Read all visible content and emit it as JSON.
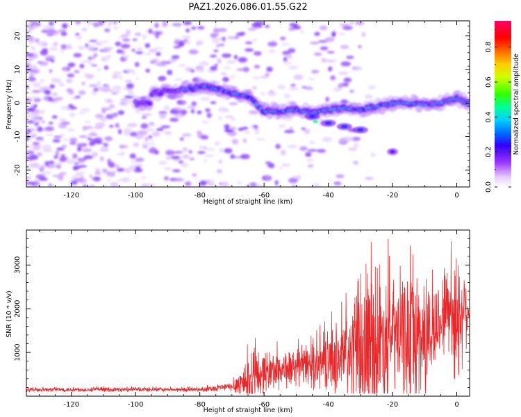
{
  "title": "PAZ1.2026.086.01.55.G22",
  "chart_data": [
    {
      "type": "heatmap",
      "name": "spectrogram",
      "xlabel": "Height of straight line (km)",
      "ylabel": "Frequency (Hz)",
      "xlim": [
        -134,
        4
      ],
      "ylim": [
        -25,
        24.5
      ],
      "xticks": [
        -120,
        -100,
        -80,
        -60,
        -40,
        -20,
        0
      ],
      "yticks": [
        -20,
        -10,
        0,
        10,
        20
      ],
      "ridge": {
        "description_points": [
          [
            -95,
            3
          ],
          [
            -85,
            4
          ],
          [
            -78,
            5
          ],
          [
            -70,
            3
          ],
          [
            -65,
            2
          ],
          [
            -60,
            -2.5
          ],
          [
            -55,
            -2.5
          ],
          [
            -50,
            -2
          ],
          [
            -45,
            -3
          ],
          [
            -40,
            -2
          ],
          [
            -35,
            -1.5
          ],
          [
            -30,
            -2
          ],
          [
            -25,
            -1
          ],
          [
            -20,
            0
          ],
          [
            -15,
            0
          ],
          [
            -10,
            -0.5
          ],
          [
            -5,
            0
          ],
          [
            0,
            1.5
          ],
          [
            3,
            0
          ]
        ],
        "secondary_branch": [
          [
            -45,
            -4
          ],
          [
            -40,
            -6
          ],
          [
            -35,
            -7
          ],
          [
            -30,
            -8
          ]
        ],
        "isolated_blob": [
          -20,
          -14.5
        ]
      },
      "colorbar": {
        "label": "Normalized spectral amplitude",
        "range": [
          0.0,
          0.95
        ],
        "ticks": [
          0.0,
          0.2,
          0.4,
          0.6,
          0.8
        ],
        "tick_labels": [
          "0.0",
          "0.2",
          "0.4",
          "0.6",
          "0.8"
        ],
        "colors": [
          "#ffffff",
          "#cc99ff",
          "#8800ff",
          "#0000ff",
          "#00ccff",
          "#00ff66",
          "#66ff00",
          "#ffff00",
          "#ff9900",
          "#ff0000",
          "#ff0066"
        ]
      }
    },
    {
      "type": "line",
      "name": "snr",
      "xlabel": "Height of straight line (km)",
      "ylabel": "SNR (10 * v/v)",
      "xlim": [
        -134,
        4
      ],
      "ylim": [
        0,
        3800
      ],
      "xticks": [
        -120,
        -100,
        -80,
        -60,
        -40,
        -20,
        0
      ],
      "yticks": [
        1000,
        2000,
        3000
      ],
      "color": "#e8282b",
      "envelope": [
        {
          "x": -134,
          "base": 150,
          "amp": 60
        },
        {
          "x": -80,
          "base": 150,
          "amp": 60
        },
        {
          "x": -70,
          "base": 220,
          "amp": 120
        },
        {
          "x": -64,
          "base": 400,
          "amp": 900
        },
        {
          "x": -60,
          "base": 550,
          "amp": 600
        },
        {
          "x": -50,
          "base": 650,
          "amp": 500
        },
        {
          "x": -40,
          "base": 800,
          "amp": 800
        },
        {
          "x": -30,
          "base": 1000,
          "amp": 1700
        },
        {
          "x": -25,
          "base": 1200,
          "amp": 2600
        },
        {
          "x": -20,
          "base": 1400,
          "amp": 1500
        },
        {
          "x": -12,
          "base": 1300,
          "amp": 2100
        },
        {
          "x": -7,
          "base": 1500,
          "amp": 1200
        },
        {
          "x": -3,
          "base": 2100,
          "amp": 1300
        },
        {
          "x": 0,
          "base": 1700,
          "amp": 2000
        },
        {
          "x": 2,
          "base": 2000,
          "amp": 1400
        },
        {
          "x": 4,
          "base": 2000,
          "amp": 500
        }
      ]
    }
  ]
}
